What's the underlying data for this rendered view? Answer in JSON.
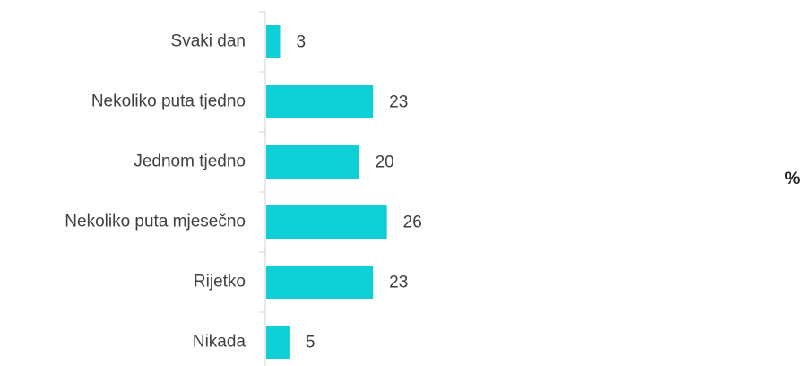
{
  "chart_data": {
    "type": "bar",
    "orientation": "horizontal",
    "categories": [
      "Svaki dan",
      "Nekoliko puta tjedno",
      "Jednom tjedno",
      "Nekoliko puta mjesečno",
      "Rijetko",
      "Nikada"
    ],
    "values": [
      3,
      23,
      20,
      26,
      23,
      5
    ],
    "color": "#0fcfd6",
    "x_label": "%"
  }
}
